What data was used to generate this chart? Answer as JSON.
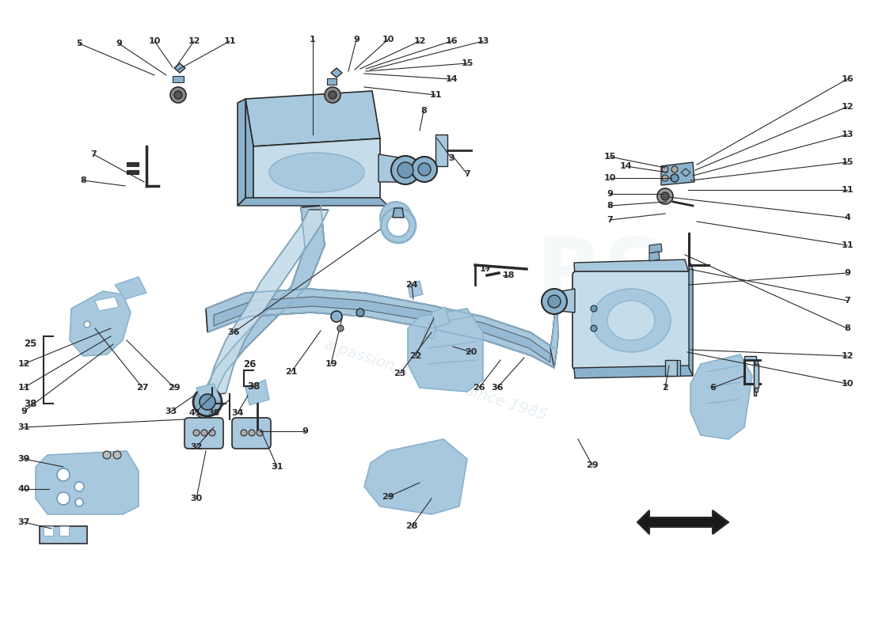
{
  "bg_color": "#ffffff",
  "lc": "#2a2a2a",
  "pc1": "#c5dcea",
  "pc2": "#a8c8de",
  "pc3": "#8ab2cc",
  "pc4": "#6e9ab8",
  "wm_color": "#d0dfe8",
  "wm_alpha": 0.5,
  "fig_w": 11.0,
  "fig_h": 8.0,
  "dpi": 100
}
